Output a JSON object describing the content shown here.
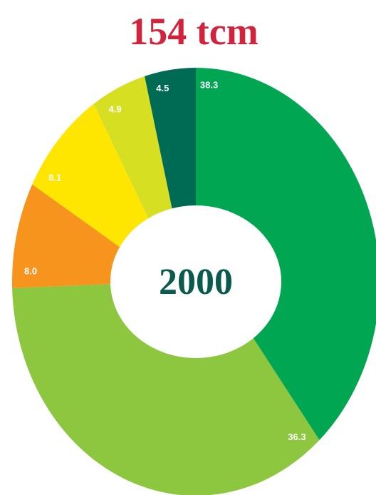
{
  "chart_data": {
    "type": "donut",
    "title": "154 tcm",
    "center_label": "2000",
    "values": [
      38.3,
      36.3,
      8.0,
      8.1,
      4.9,
      4.5
    ],
    "value_labels": [
      "38.3",
      "36.3",
      "8.0",
      "8.1",
      "4.9",
      "4.5"
    ],
    "colors": [
      "#00a651",
      "#8dc63f",
      "#f7941d",
      "#ffe600",
      "#d7df23",
      "#006b54"
    ]
  }
}
